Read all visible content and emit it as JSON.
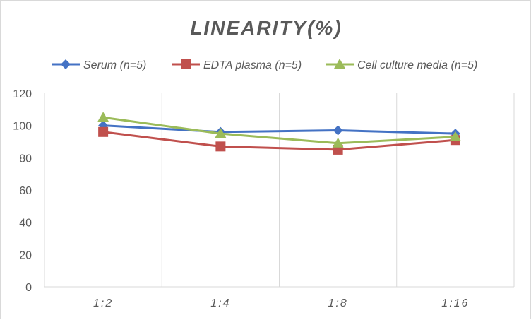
{
  "chart_data": {
    "type": "line",
    "title": "LINEARITY(%)",
    "categories": [
      "1:2",
      "1:4",
      "1:8",
      "1:16"
    ],
    "ylim": [
      0,
      120
    ],
    "yticks": [
      0,
      20,
      40,
      60,
      80,
      100,
      120
    ],
    "grid": "vertical",
    "legend_position": "top",
    "series": [
      {
        "name": "Serum (n=5)",
        "color": "#4472c4",
        "marker": "diamond",
        "values": [
          100,
          96,
          97,
          95
        ]
      },
      {
        "name": "EDTA plasma (n=5)",
        "color": "#c0504d",
        "marker": "square",
        "values": [
          96,
          87,
          85,
          91
        ]
      },
      {
        "name": "Cell culture media (n=5)",
        "color": "#9bbb59",
        "marker": "triangle",
        "values": [
          105,
          95,
          89,
          93
        ]
      }
    ]
  }
}
